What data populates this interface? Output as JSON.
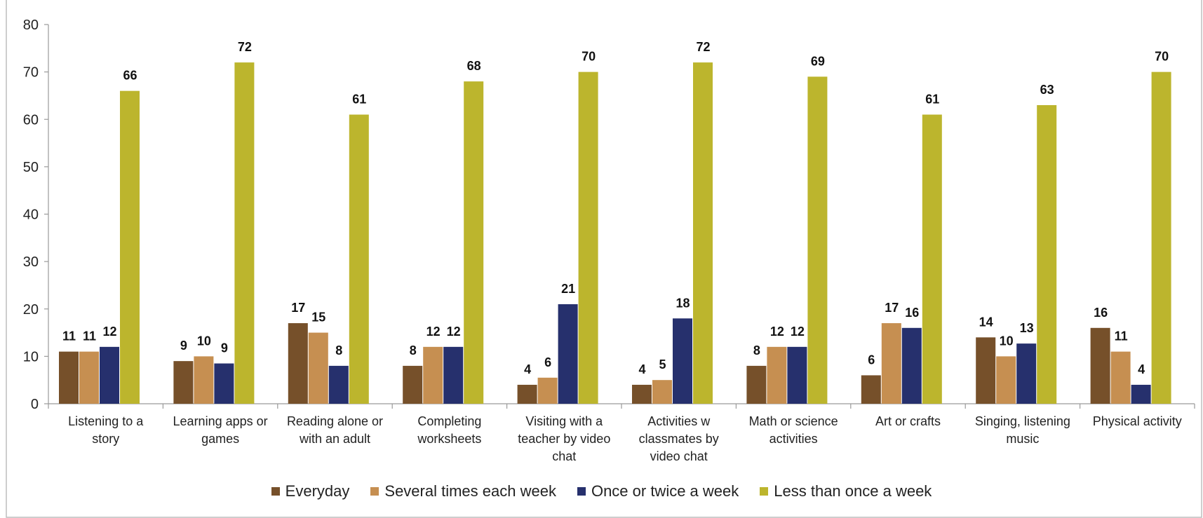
{
  "chart_data": {
    "type": "bar",
    "title": "",
    "xlabel": "",
    "ylabel": "",
    "ylim": [
      0,
      80
    ],
    "yticks": [
      0,
      10,
      20,
      30,
      40,
      50,
      60,
      70,
      80
    ],
    "grid": false,
    "legend_position": "bottom",
    "categories": [
      [
        "Listening to a",
        "story"
      ],
      [
        "Learning apps or",
        "games"
      ],
      [
        "Reading alone or",
        "with an adult"
      ],
      [
        "Completing",
        "worksheets"
      ],
      [
        "Visiting with a",
        "teacher by video",
        "chat"
      ],
      [
        "Activities w",
        "classmates by",
        "video chat"
      ],
      [
        "Math or science",
        "activities"
      ],
      [
        "Art or crafts"
      ],
      [
        "Singing, listening",
        "music"
      ],
      [
        "Physical activity"
      ]
    ],
    "series": [
      {
        "name": "Everyday",
        "color": "#76502a",
        "values": [
          11,
          9,
          17,
          8,
          4,
          4,
          8,
          6,
          14,
          16
        ]
      },
      {
        "name": "Several times each week",
        "color": "#c68f51",
        "values": [
          11,
          10,
          15,
          12,
          6,
          5,
          12,
          17,
          10,
          11
        ]
      },
      {
        "name": "Once or twice a week",
        "color": "#26306d",
        "values": [
          12,
          9,
          8,
          12,
          21,
          18,
          12,
          16,
          13,
          4
        ]
      },
      {
        "name": "Less than once a week",
        "color": "#bcb52d",
        "values": [
          66,
          72,
          61,
          68,
          70,
          72,
          69,
          61,
          63,
          70
        ]
      }
    ],
    "heights": [
      [
        11,
        9,
        17,
        8,
        4,
        4,
        8,
        6,
        14,
        16
      ],
      [
        11,
        10,
        15,
        12,
        5.5,
        5,
        12,
        17,
        10,
        11
      ],
      [
        12,
        8.5,
        8,
        12,
        21,
        18,
        12,
        16,
        12.7,
        4
      ],
      [
        66,
        72,
        61,
        68,
        70,
        72,
        69,
        61,
        63,
        70
      ]
    ]
  }
}
